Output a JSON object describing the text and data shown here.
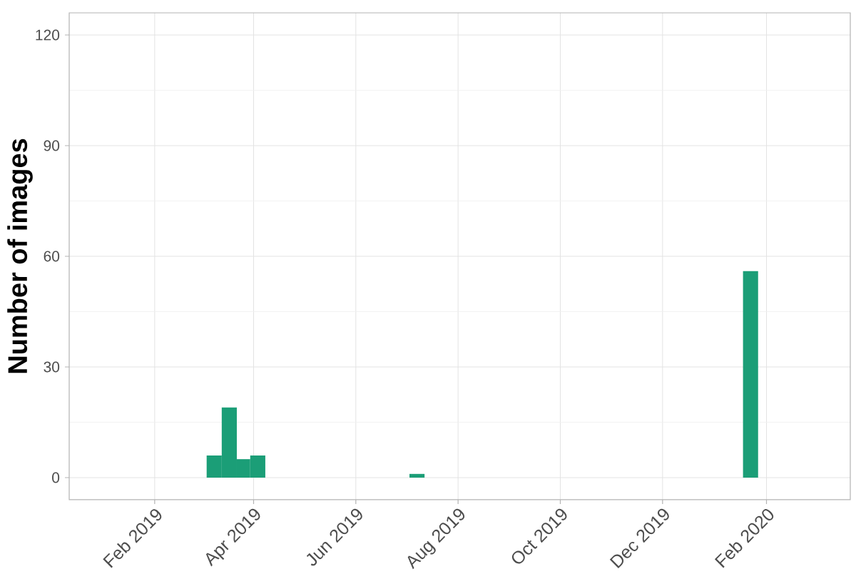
{
  "chart_data": {
    "type": "histogram",
    "ylabel": "Number of images",
    "bins": [
      "2019-03-04",
      "2019-03-13",
      "2019-03-22",
      "2019-03-30",
      "2019-04-08",
      "2019-07-03",
      "2019-07-12",
      "2020-01-18",
      "2020-01-27"
    ],
    "values": [
      6,
      19,
      5,
      6,
      null,
      1,
      null,
      56
    ],
    "color": "#1b9e77",
    "xlim": [
      "2018-12-12",
      "2020-03-22"
    ],
    "xticks": [
      {
        "value": "2019-02-01",
        "label": "Feb 2019"
      },
      {
        "value": "2019-04-01",
        "label": "Apr 2019"
      },
      {
        "value": "2019-06-01",
        "label": "Jun 2019"
      },
      {
        "value": "2019-08-01",
        "label": "Aug 2019"
      },
      {
        "value": "2019-10-01",
        "label": "Oct 2019"
      },
      {
        "value": "2019-12-01",
        "label": "Dec 2019"
      },
      {
        "value": "2020-02-01",
        "label": "Feb 2020"
      }
    ],
    "ylim": [
      -6,
      126
    ],
    "yticks": [
      0,
      30,
      60,
      90,
      120
    ],
    "grid": true
  }
}
